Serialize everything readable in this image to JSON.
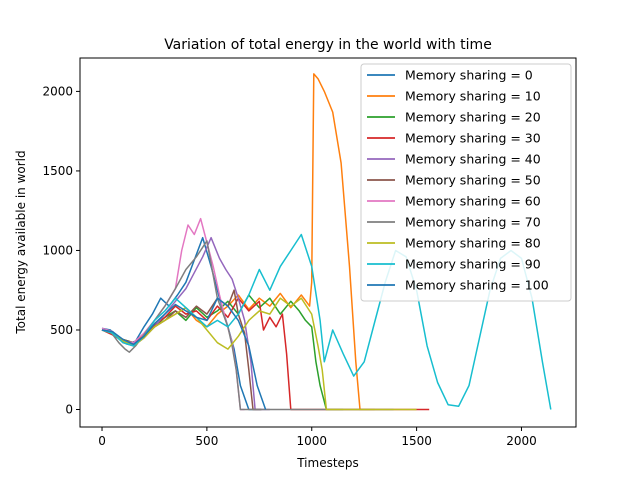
{
  "chart_data": {
    "type": "line",
    "title": "Variation of total energy in the world with time",
    "xlabel": "Timesteps",
    "ylabel": "Total energy available in world",
    "xlim": [
      -105,
      2260
    ],
    "ylim": [
      -110,
      2210
    ],
    "xticks": [
      0,
      500,
      1000,
      1500,
      2000
    ],
    "yticks": [
      0,
      500,
      1000,
      1500,
      2000
    ],
    "grid": false,
    "legend_position": "top-right",
    "series": [
      {
        "name": "Memory sharing = 0",
        "color": "#1f77b4",
        "x": [
          0,
          40,
          80,
          120,
          160,
          200,
          240,
          280,
          320,
          360,
          400,
          440,
          480,
          520,
          560,
          600,
          630,
          660,
          700,
          760
        ],
        "y": [
          510,
          500,
          450,
          410,
          430,
          520,
          600,
          700,
          650,
          720,
          800,
          940,
          1080,
          900,
          700,
          520,
          380,
          150,
          0,
          0
        ]
      },
      {
        "name": "Memory sharing = 10",
        "color": "#ff7f0e",
        "x": [
          0,
          50,
          100,
          150,
          200,
          250,
          300,
          350,
          400,
          450,
          500,
          550,
          600,
          650,
          700,
          750,
          800,
          850,
          900,
          950,
          990,
          1000,
          1005,
          1010,
          1030,
          1060,
          1100,
          1140,
          1180,
          1210,
          1230,
          1300
        ],
        "y": [
          500,
          490,
          430,
          420,
          470,
          520,
          560,
          600,
          640,
          560,
          520,
          600,
          650,
          720,
          630,
          700,
          650,
          730,
          640,
          720,
          650,
          800,
          1500,
          2110,
          2080,
          2000,
          1870,
          1550,
          900,
          300,
          0,
          0
        ]
      },
      {
        "name": "Memory sharing = 20",
        "color": "#2ca02c",
        "x": [
          0,
          50,
          100,
          150,
          200,
          250,
          300,
          350,
          400,
          450,
          500,
          550,
          600,
          650,
          700,
          750,
          800,
          850,
          900,
          940,
          970,
          1000,
          1020,
          1040,
          1070,
          1100,
          1150
        ],
        "y": [
          500,
          480,
          440,
          420,
          460,
          520,
          580,
          620,
          560,
          640,
          580,
          620,
          680,
          600,
          720,
          640,
          700,
          600,
          680,
          620,
          560,
          520,
          300,
          150,
          0,
          0,
          0
        ]
      },
      {
        "name": "Memory sharing = 30",
        "color": "#d62728",
        "x": [
          0,
          50,
          100,
          150,
          200,
          250,
          300,
          350,
          400,
          450,
          500,
          550,
          600,
          650,
          700,
          750,
          770,
          800,
          830,
          860,
          880,
          900,
          950,
          1000,
          1100,
          1200,
          1300,
          1400,
          1500,
          1560
        ],
        "y": [
          500,
          470,
          430,
          410,
          460,
          530,
          580,
          650,
          600,
          620,
          560,
          650,
          580,
          700,
          620,
          680,
          500,
          580,
          520,
          600,
          350,
          0,
          0,
          0,
          0,
          0,
          0,
          0,
          0,
          0
        ]
      },
      {
        "name": "Memory sharing = 40",
        "color": "#9467bd",
        "x": [
          0,
          50,
          100,
          150,
          200,
          250,
          300,
          350,
          400,
          440,
          480,
          520,
          560,
          590,
          620,
          650,
          680,
          710,
          730,
          760,
          800
        ],
        "y": [
          500,
          490,
          420,
          400,
          450,
          520,
          600,
          680,
          760,
          860,
          960,
          1080,
          950,
          880,
          820,
          700,
          560,
          300,
          0,
          0,
          0
        ]
      },
      {
        "name": "Memory sharing = 50",
        "color": "#8c564b",
        "x": [
          0,
          50,
          100,
          150,
          200,
          250,
          300,
          350,
          400,
          450,
          500,
          550,
          600,
          630,
          650,
          680,
          700,
          720,
          760
        ],
        "y": [
          500,
          480,
          440,
          420,
          460,
          520,
          560,
          620,
          580,
          650,
          600,
          700,
          650,
          750,
          600,
          480,
          250,
          0,
          0
        ]
      },
      {
        "name": "Memory sharing = 60",
        "color": "#e377c2",
        "x": [
          0,
          50,
          100,
          150,
          200,
          250,
          300,
          350,
          380,
          410,
          440,
          470,
          500,
          530,
          560,
          590,
          620,
          640,
          660,
          680
        ],
        "y": [
          510,
          490,
          430,
          420,
          480,
          560,
          650,
          760,
          1000,
          1160,
          1100,
          1200,
          1050,
          900,
          720,
          560,
          420,
          250,
          0,
          0
        ]
      },
      {
        "name": "Memory sharing = 70",
        "color": "#7f7f7f",
        "x": [
          0,
          40,
          80,
          110,
          130,
          160,
          200,
          250,
          300,
          350,
          400,
          450,
          500,
          550,
          600,
          620,
          640,
          660,
          700,
          800,
          900,
          1000,
          1100,
          1200,
          1300,
          1390
        ],
        "y": [
          500,
          490,
          420,
          380,
          360,
          400,
          470,
          560,
          650,
          760,
          880,
          960,
          1060,
          700,
          520,
          400,
          250,
          0,
          0,
          0,
          0,
          0,
          0,
          0,
          0,
          0
        ]
      },
      {
        "name": "Memory sharing = 80",
        "color": "#bcbd22",
        "x": [
          0,
          50,
          100,
          150,
          200,
          250,
          300,
          350,
          400,
          450,
          500,
          550,
          600,
          650,
          700,
          750,
          800,
          850,
          900,
          950,
          1000,
          1030,
          1050,
          1070,
          1100,
          1150,
          1200,
          1300,
          1400,
          1500
        ],
        "y": [
          500,
          480,
          430,
          400,
          450,
          520,
          560,
          600,
          640,
          580,
          500,
          420,
          380,
          460,
          560,
          620,
          600,
          700,
          650,
          700,
          600,
          400,
          250,
          0,
          0,
          0,
          0,
          0,
          0,
          0
        ]
      },
      {
        "name": "Memory sharing = 90",
        "color": "#17becf",
        "x": [
          0,
          50,
          100,
          150,
          200,
          250,
          300,
          350,
          400,
          450,
          500,
          550,
          600,
          650,
          700,
          750,
          800,
          850,
          900,
          950,
          1000,
          1040,
          1060,
          1100,
          1150,
          1200,
          1250,
          1300,
          1350,
          1400,
          1450,
          1500,
          1550,
          1600,
          1650,
          1700,
          1750,
          1800,
          1850,
          1900,
          1950,
          2000,
          2050,
          2100,
          2140
        ],
        "y": [
          500,
          480,
          420,
          400,
          460,
          560,
          620,
          700,
          640,
          580,
          520,
          560,
          520,
          600,
          720,
          880,
          750,
          900,
          1000,
          1100,
          900,
          560,
          300,
          500,
          350,
          210,
          300,
          550,
          800,
          1000,
          960,
          750,
          400,
          170,
          30,
          20,
          150,
          450,
          750,
          950,
          1000,
          950,
          700,
          300,
          0
        ]
      },
      {
        "name": "Memory sharing = 100",
        "color": "#1f77b4",
        "x": [
          0,
          50,
          100,
          150,
          200,
          250,
          300,
          350,
          400,
          450,
          500,
          550,
          600,
          650,
          700,
          740,
          780
        ],
        "y": [
          500,
          490,
          440,
          410,
          460,
          540,
          600,
          660,
          620,
          580,
          560,
          700,
          650,
          560,
          400,
          150,
          0
        ]
      }
    ]
  }
}
